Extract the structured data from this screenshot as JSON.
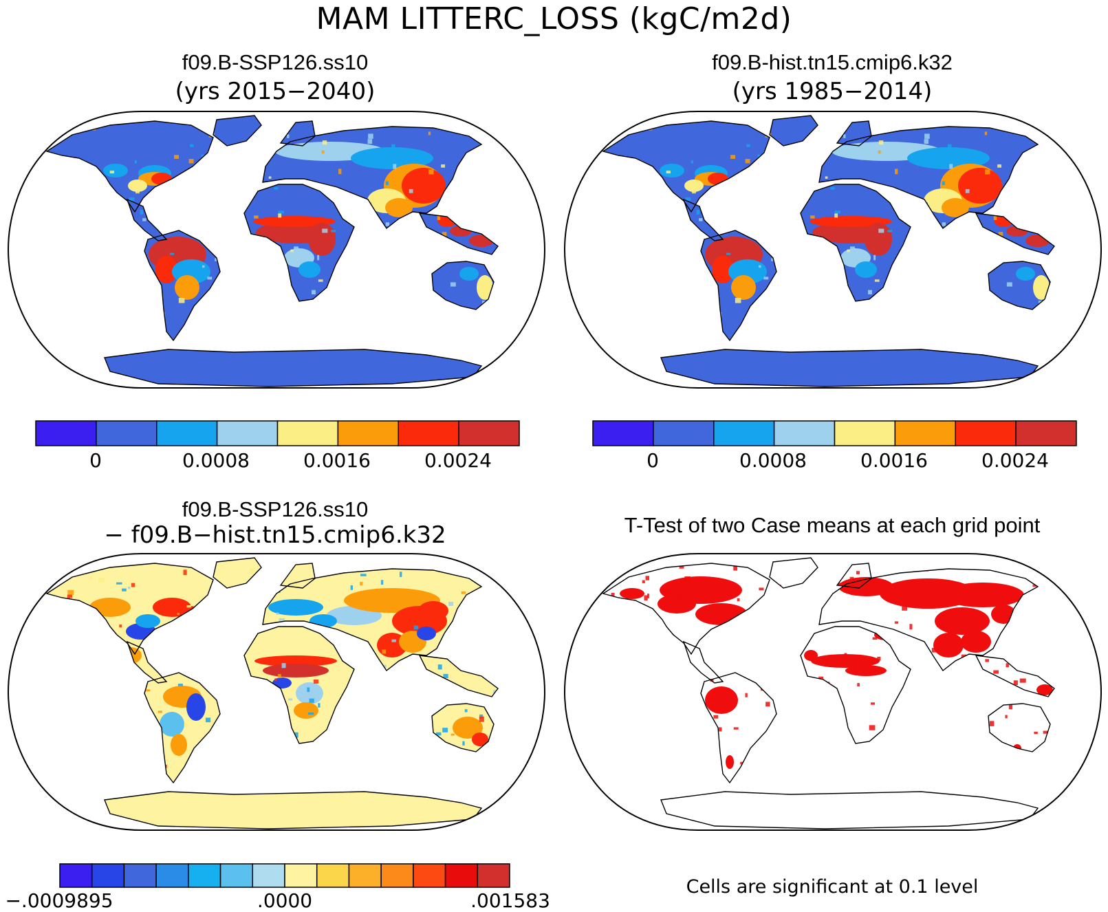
{
  "figure": {
    "title": "MAM LITTERC_LOSS (kgC/m2d)"
  },
  "panels": {
    "top_left": {
      "title": "f09.B-SSP126.ss10",
      "subtitle": "(yrs 2015−2040)",
      "colorbar": {
        "colors": [
          "#3b1ef0",
          "#4068dc",
          "#16a4ee",
          "#9dd1ed",
          "#fbee84",
          "#fb9c0a",
          "#fb2a0a",
          "#d2302c"
        ],
        "tick_labels": [
          "0",
          "0.0008",
          "0.0016",
          "0.0024"
        ]
      }
    },
    "top_right": {
      "title": "f09.B-hist.tn15.cmip6.k32",
      "subtitle": "(yrs 1985−2014)",
      "colorbar": {
        "colors": [
          "#3b1ef0",
          "#4068dc",
          "#16a4ee",
          "#9dd1ed",
          "#fbee84",
          "#fb9c0a",
          "#fb2a0a",
          "#d2302c"
        ],
        "tick_labels": [
          "0",
          "0.0008",
          "0.0016",
          "0.0024"
        ]
      }
    },
    "bottom_left": {
      "title": "f09.B-SSP126.ss10",
      "subtitle": "− f09.B−hist.tn15.cmip6.k32",
      "colorbar": {
        "colors": [
          "#3b1ef0",
          "#2846e8",
          "#4068dc",
          "#2b8ce8",
          "#16b0f0",
          "#5cc0ee",
          "#b0dcef",
          "#fdf3a0",
          "#fcd64a",
          "#fcb02a",
          "#fc8a1a",
          "#fc4a12",
          "#e80c0c",
          "#d2302c"
        ],
        "tick_labels": [
          "−.0009895",
          ".0000",
          ".001583"
        ]
      }
    },
    "bottom_right": {
      "title": "T-Test of two Case means at each grid point",
      "footnote": "Cells are significant at 0.1 level",
      "significance_color": "#f00d0d"
    }
  },
  "map_colors": {
    "outline": "#000000",
    "ocean": "#ffffff",
    "low": "#4068dc",
    "mid": "#16a4ee",
    "pale": "#9dd1ed",
    "yellow": "#fbee84",
    "orange": "#fb9c0a",
    "red": "#fb2a0a",
    "darkred": "#d2302c",
    "diff_base": "#fdf3a0",
    "diff_neg": "#2846e8",
    "diff_lightneg": "#5cc0ee",
    "sig": "#f00d0d"
  }
}
